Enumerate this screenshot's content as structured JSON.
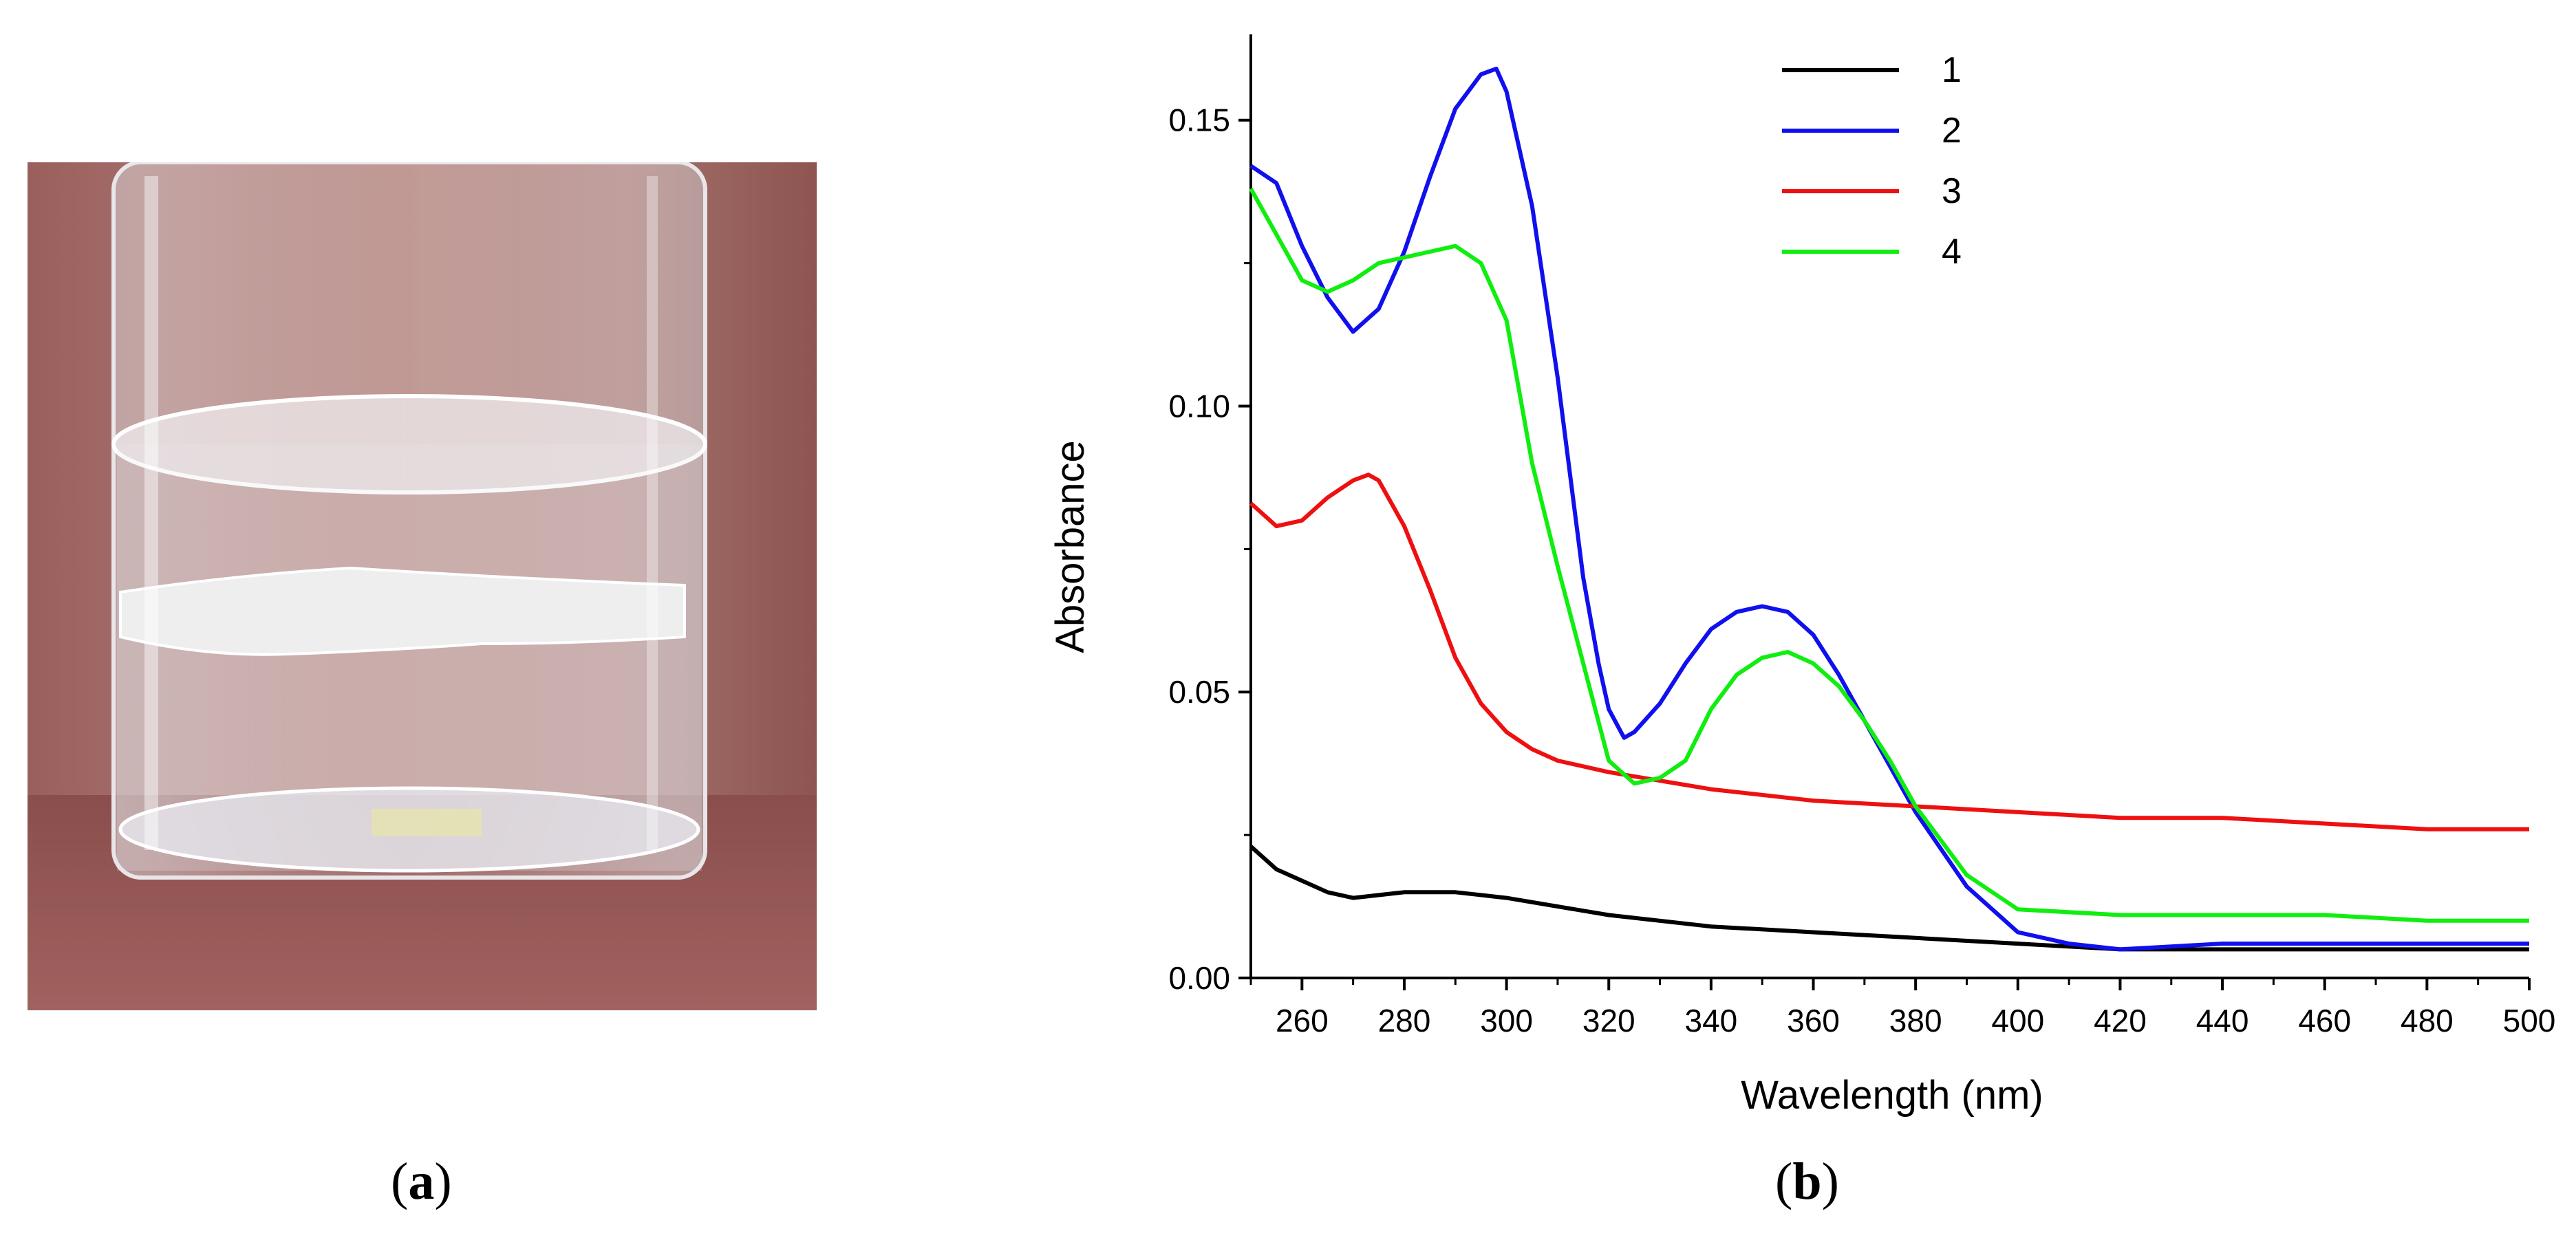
{
  "panel_labels": {
    "a": "a",
    "b": "b"
  },
  "photo": {
    "description_icon": "vial-photo"
  },
  "colors": {
    "s1": "#000000",
    "s2": "#1010ee",
    "s3": "#ee1010",
    "s4": "#10ee10"
  },
  "chart_data": {
    "type": "line",
    "title": "",
    "xlabel": "Wavelength (nm)",
    "ylabel": "Absorbance",
    "xlim": [
      250,
      500
    ],
    "ylim": [
      0,
      0.165
    ],
    "xticks": [
      260,
      280,
      300,
      320,
      340,
      360,
      380,
      400,
      420,
      440,
      460,
      480,
      500
    ],
    "yticks": [
      0.0,
      0.05,
      0.1,
      0.15
    ],
    "ytick_labels": [
      "0.00",
      "0.05",
      "0.10",
      "0.15"
    ],
    "legend_position": "top-center",
    "series": [
      {
        "name": "1",
        "color": "#000000",
        "x": [
          250,
          255,
          260,
          265,
          270,
          280,
          290,
          300,
          320,
          340,
          360,
          380,
          400,
          420,
          440,
          460,
          480,
          500
        ],
        "y": [
          0.023,
          0.019,
          0.017,
          0.015,
          0.014,
          0.015,
          0.015,
          0.014,
          0.011,
          0.009,
          0.008,
          0.007,
          0.006,
          0.005,
          0.005,
          0.005,
          0.005,
          0.005
        ]
      },
      {
        "name": "2",
        "color": "#1010ee",
        "x": [
          250,
          255,
          260,
          265,
          270,
          275,
          280,
          285,
          290,
          295,
          298,
          300,
          305,
          310,
          315,
          318,
          320,
          323,
          325,
          330,
          335,
          340,
          345,
          350,
          355,
          360,
          365,
          370,
          375,
          380,
          390,
          400,
          410,
          420,
          440,
          460,
          480,
          500
        ],
        "y": [
          0.142,
          0.139,
          0.128,
          0.119,
          0.113,
          0.117,
          0.127,
          0.14,
          0.152,
          0.158,
          0.159,
          0.155,
          0.135,
          0.105,
          0.07,
          0.055,
          0.047,
          0.042,
          0.043,
          0.048,
          0.055,
          0.061,
          0.064,
          0.065,
          0.064,
          0.06,
          0.053,
          0.045,
          0.037,
          0.029,
          0.016,
          0.008,
          0.006,
          0.005,
          0.006,
          0.006,
          0.006,
          0.006
        ]
      },
      {
        "name": "3",
        "color": "#ee1010",
        "x": [
          250,
          255,
          260,
          265,
          270,
          273,
          275,
          280,
          285,
          290,
          295,
          300,
          305,
          310,
          320,
          340,
          360,
          380,
          400,
          420,
          440,
          460,
          480,
          500
        ],
        "y": [
          0.083,
          0.079,
          0.08,
          0.084,
          0.087,
          0.088,
          0.087,
          0.079,
          0.068,
          0.056,
          0.048,
          0.043,
          0.04,
          0.038,
          0.036,
          0.033,
          0.031,
          0.03,
          0.029,
          0.028,
          0.028,
          0.027,
          0.026,
          0.026
        ]
      },
      {
        "name": "4",
        "color": "#10ee10",
        "x": [
          250,
          255,
          260,
          265,
          270,
          275,
          280,
          285,
          290,
          295,
          300,
          305,
          310,
          315,
          320,
          325,
          330,
          335,
          340,
          345,
          350,
          355,
          360,
          365,
          370,
          375,
          380,
          390,
          400,
          420,
          440,
          460,
          480,
          500
        ],
        "y": [
          0.138,
          0.13,
          0.122,
          0.12,
          0.122,
          0.125,
          0.126,
          0.127,
          0.128,
          0.125,
          0.115,
          0.09,
          0.072,
          0.055,
          0.038,
          0.034,
          0.035,
          0.038,
          0.047,
          0.053,
          0.056,
          0.057,
          0.055,
          0.051,
          0.045,
          0.038,
          0.03,
          0.018,
          0.012,
          0.011,
          0.011,
          0.011,
          0.01,
          0.01
        ]
      }
    ]
  }
}
